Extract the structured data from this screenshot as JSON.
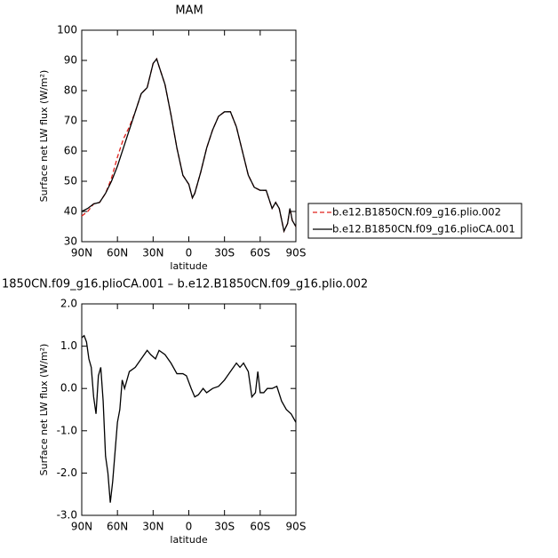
{
  "chart_data": [
    {
      "type": "line",
      "title": "MAM",
      "x_label": "latitude",
      "y_label": "Surface net LW flux (W/m²)",
      "x": [
        90,
        85,
        80,
        75,
        70,
        65,
        60,
        55,
        50,
        45,
        40,
        35,
        30,
        27,
        25,
        20,
        15,
        10,
        5,
        0,
        -3,
        -5,
        -10,
        -15,
        -20,
        -25,
        -30,
        -35,
        -40,
        -45,
        -50,
        -55,
        -60,
        -65,
        -70,
        -73,
        -76,
        -80,
        -83,
        -85,
        -87,
        -90
      ],
      "series": [
        {
          "name": "b.e12.B1850CN.f09_g16.plio.002",
          "color": "#e0201b",
          "dash": true,
          "values": [
            38.5,
            40,
            42.5,
            43,
            46,
            51,
            58,
            64,
            68,
            73,
            79,
            81,
            89,
            90.5,
            88,
            82,
            72,
            61,
            52,
            49,
            44.5,
            46,
            53,
            61,
            67,
            71.5,
            73,
            73,
            68,
            60,
            52,
            48,
            47,
            47,
            41,
            43,
            41,
            33.5,
            36,
            41,
            37,
            35
          ]
        },
        {
          "name": "b.e12.B1850CN.f09_g16.plioCA.001",
          "color": "#000000",
          "dash": false,
          "values": [
            40,
            41,
            42.5,
            43,
            46,
            50,
            55,
            61,
            67,
            73,
            79,
            81,
            89,
            90.5,
            88,
            82,
            72,
            61,
            52,
            49,
            44.5,
            46,
            53,
            61,
            67,
            71.5,
            73,
            73,
            68,
            60,
            52,
            48,
            47,
            47,
            41,
            43,
            41,
            33.5,
            36,
            41,
            37,
            35
          ]
        }
      ],
      "xlim": [
        90,
        -90
      ],
      "xticks": [
        {
          "value": 90,
          "label": "90N"
        },
        {
          "value": 60,
          "label": "60N"
        },
        {
          "value": 30,
          "label": "30N"
        },
        0,
        {
          "value": -30,
          "label": "30S"
        },
        {
          "value": -60,
          "label": "60S"
        },
        {
          "value": -90,
          "label": "90S"
        }
      ],
      "ylim": [
        30,
        100
      ],
      "yticks": [
        30,
        40,
        50,
        60,
        70,
        80,
        90,
        100
      ],
      "legend": "right"
    },
    {
      "type": "line",
      "title": "1850CN.f09_g16.plioCA.001 – b.e12.B1850CN.f09_g16.plio.002",
      "x_label": "latitude",
      "y_label": "Surface net LW flux (W/m²)",
      "x": [
        90,
        88,
        86,
        84,
        82,
        80,
        78,
        76,
        74,
        72,
        70,
        68,
        66,
        64,
        62,
        60,
        58,
        56,
        54,
        52,
        50,
        45,
        40,
        35,
        32,
        28,
        25,
        20,
        15,
        10,
        5,
        2,
        -2,
        -5,
        -8,
        -12,
        -15,
        -20,
        -25,
        -30,
        -35,
        -40,
        -43,
        -46,
        -50,
        -53,
        -56,
        -58,
        -60,
        -63,
        -66,
        -70,
        -74,
        -78,
        -82,
        -86,
        -90
      ],
      "values": [
        1.2,
        1.25,
        1.1,
        0.7,
        0.5,
        -0.2,
        -0.6,
        0.3,
        0.5,
        -0.3,
        -1.6,
        -2.0,
        -2.7,
        -2.2,
        -1.5,
        -0.8,
        -0.5,
        0.2,
        0.0,
        0.2,
        0.4,
        0.5,
        0.7,
        0.9,
        0.8,
        0.7,
        0.9,
        0.8,
        0.6,
        0.35,
        0.35,
        0.3,
        0.0,
        -0.2,
        -0.15,
        0.0,
        -0.1,
        0.0,
        0.05,
        0.2,
        0.4,
        0.6,
        0.5,
        0.6,
        0.4,
        -0.2,
        -0.1,
        0.4,
        -0.1,
        -0.1,
        0.0,
        0.0,
        0.05,
        -0.3,
        -0.5,
        -0.6,
        -0.8
      ],
      "color": "#000000",
      "xlim": [
        90,
        -90
      ],
      "xticks": [
        {
          "value": 90,
          "label": "90N"
        },
        {
          "value": 60,
          "label": "60N"
        },
        {
          "value": 30,
          "label": "30N"
        },
        0,
        {
          "value": -30,
          "label": "30S"
        },
        {
          "value": -60,
          "label": "60S"
        },
        {
          "value": -90,
          "label": "90S"
        }
      ],
      "ylim": [
        -3,
        2
      ],
      "yticks": [
        {
          "value": -3,
          "label": "-3.0"
        },
        {
          "value": -2,
          "label": "-2.0"
        },
        {
          "value": -1,
          "label": "-1.0"
        },
        {
          "value": 0,
          "label": "0.0"
        },
        {
          "value": 1,
          "label": "1.0"
        },
        {
          "value": 2,
          "label": "2.0"
        }
      ]
    }
  ]
}
